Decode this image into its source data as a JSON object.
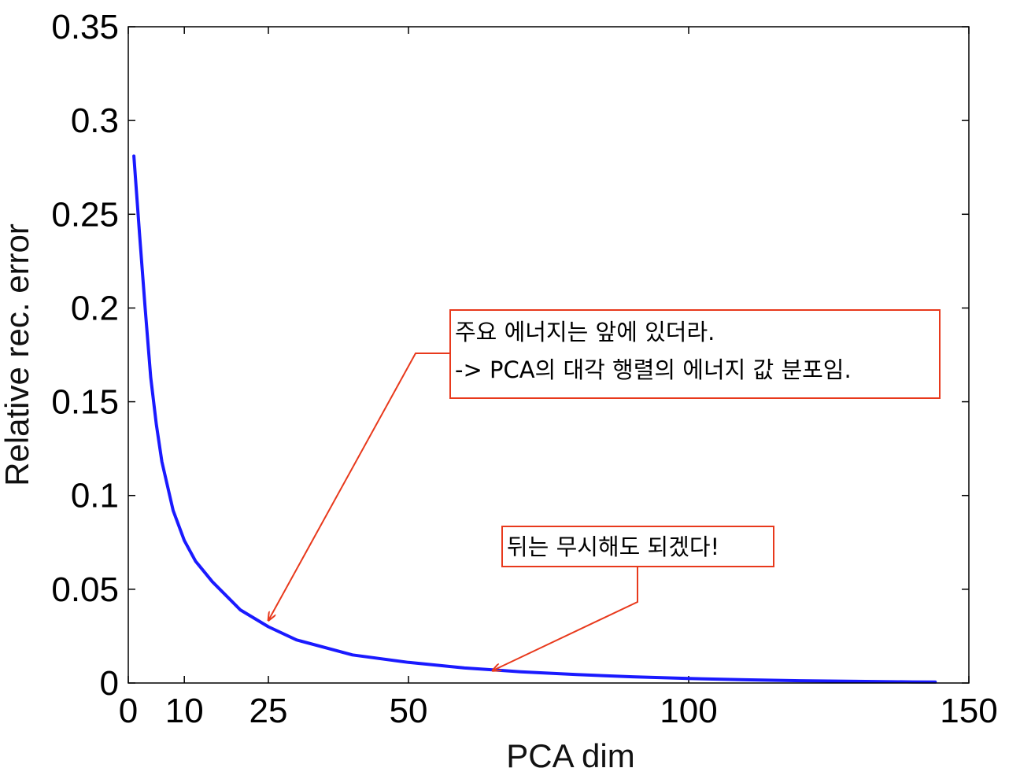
{
  "chart_data": {
    "type": "line",
    "title": "",
    "xlabel": "PCA dim",
    "ylabel": "Relative rec. error",
    "xlim": [
      0,
      150
    ],
    "ylim": [
      0,
      0.35
    ],
    "xticks": [
      0,
      10,
      25,
      50,
      100,
      150
    ],
    "xtick_labels": [
      "0",
      "10",
      "25",
      "50",
      "100",
      "150"
    ],
    "yticks": [
      0,
      0.05,
      0.1,
      0.15,
      0.2,
      0.25,
      0.3,
      0.35
    ],
    "ytick_labels": [
      "0",
      "0.05",
      "0.1",
      "0.15",
      "0.2",
      "0.25",
      "0.3",
      "0.35"
    ],
    "grid": false,
    "series": [
      {
        "color": "#1a1aff",
        "x": [
          1,
          2,
          3,
          4,
          5,
          6,
          8,
          10,
          12,
          15,
          20,
          25,
          30,
          40,
          50,
          60,
          65,
          70,
          80,
          90,
          100,
          110,
          120,
          130,
          140,
          144
        ],
        "y": [
          0.281,
          0.24,
          0.2,
          0.163,
          0.138,
          0.118,
          0.092,
          0.076,
          0.065,
          0.054,
          0.039,
          0.03,
          0.023,
          0.015,
          0.011,
          0.008,
          0.007,
          0.006,
          0.0045,
          0.0033,
          0.0024,
          0.0017,
          0.0012,
          0.0009,
          0.0006,
          0.0005
        ]
      }
    ],
    "annotations": [
      {
        "lines": [
          "주요 에너지는 앞에 있더라.",
          "-> PCA의 대각 행렬의 에너지 값 분포임."
        ],
        "target": [
          25,
          0.03
        ]
      },
      {
        "lines": [
          "뒤는 무시해도 되겠다!"
        ],
        "target": [
          65,
          0.007
        ]
      }
    ],
    "annotation_color": "#e8391c"
  }
}
